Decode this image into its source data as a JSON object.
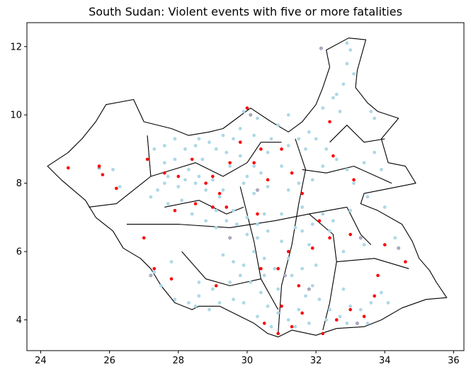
{
  "chart_data": {
    "type": "scatter",
    "title": "South Sudan: Violent events with five or more fatalities",
    "xlim": [
      23.6,
      36.3
    ],
    "ylim": [
      3.1,
      12.7
    ],
    "x_ticks": [
      24,
      26,
      28,
      30,
      32,
      34,
      36
    ],
    "y_ticks": [
      4,
      6,
      8,
      10,
      12
    ],
    "colors": {
      "minor": "#add8e6",
      "major": "#ff0000",
      "other": "#b0b0c8"
    },
    "outline": [
      [
        32.95,
        12.25
      ],
      [
        33.45,
        12.2
      ],
      [
        33.2,
        11.3
      ],
      [
        33.15,
        10.8
      ],
      [
        33.5,
        10.35
      ],
      [
        33.8,
        10.1
      ],
      [
        34.4,
        9.9
      ],
      [
        34.15,
        9.6
      ],
      [
        33.9,
        9.3
      ],
      [
        34.1,
        8.6
      ],
      [
        34.6,
        8.5
      ],
      [
        34.9,
        8.0
      ],
      [
        33.9,
        7.8
      ],
      [
        33.4,
        7.7
      ],
      [
        33.3,
        7.4
      ],
      [
        33.8,
        7.2
      ],
      [
        34.5,
        6.8
      ],
      [
        34.8,
        6.3
      ],
      [
        35.0,
        5.8
      ],
      [
        35.3,
        5.45
      ],
      [
        35.5,
        5.1
      ],
      [
        35.8,
        4.65
      ],
      [
        35.2,
        4.6
      ],
      [
        34.5,
        4.35
      ],
      [
        33.9,
        4.0
      ],
      [
        33.4,
        3.8
      ],
      [
        32.6,
        3.75
      ],
      [
        32.0,
        3.55
      ],
      [
        31.3,
        3.7
      ],
      [
        30.9,
        3.5
      ],
      [
        30.6,
        3.6
      ],
      [
        30.2,
        3.9
      ],
      [
        29.6,
        4.2
      ],
      [
        29.2,
        4.4
      ],
      [
        28.6,
        4.4
      ],
      [
        28.4,
        4.3
      ],
      [
        27.9,
        4.5
      ],
      [
        27.5,
        5.0
      ],
      [
        27.2,
        5.5
      ],
      [
        26.9,
        5.8
      ],
      [
        26.4,
        6.1
      ],
      [
        26.1,
        6.6
      ],
      [
        25.6,
        7.0
      ],
      [
        25.3,
        7.5
      ],
      [
        24.6,
        8.1
      ],
      [
        24.2,
        8.5
      ],
      [
        24.8,
        8.9
      ],
      [
        25.2,
        9.3
      ],
      [
        25.6,
        9.8
      ],
      [
        25.9,
        10.3
      ],
      [
        26.7,
        10.45
      ],
      [
        27.0,
        9.8
      ],
      [
        27.8,
        9.6
      ],
      [
        28.3,
        9.4
      ],
      [
        28.9,
        9.5
      ],
      [
        29.3,
        9.6
      ],
      [
        29.7,
        9.9
      ],
      [
        30.1,
        10.2
      ],
      [
        30.7,
        9.8
      ],
      [
        31.2,
        9.5
      ],
      [
        31.6,
        9.8
      ],
      [
        32.0,
        10.3
      ],
      [
        32.2,
        10.8
      ],
      [
        32.4,
        11.4
      ],
      [
        32.3,
        11.9
      ],
      [
        32.95,
        12.25
      ]
    ],
    "admin_boundaries": [
      [
        [
          27.1,
          9.4
        ],
        [
          27.2,
          8.2
        ],
        [
          26.2,
          7.4
        ],
        [
          25.4,
          7.3
        ]
      ],
      [
        [
          27.2,
          8.2
        ],
        [
          28.5,
          8.6
        ],
        [
          29.3,
          8.2
        ],
        [
          30.0,
          8.6
        ],
        [
          30.4,
          9.2
        ],
        [
          31.0,
          9.2
        ]
      ],
      [
        [
          26.5,
          6.8
        ],
        [
          28.0,
          6.8
        ],
        [
          29.5,
          6.7
        ],
        [
          30.8,
          6.9
        ],
        [
          31.8,
          7.1
        ],
        [
          32.9,
          7.3
        ]
      ],
      [
        [
          29.8,
          7.9
        ],
        [
          30.2,
          6.3
        ],
        [
          30.4,
          5.2
        ],
        [
          30.9,
          4.3
        ]
      ],
      [
        [
          31.4,
          9.3
        ],
        [
          31.7,
          8.4
        ],
        [
          31.5,
          7.4
        ],
        [
          31.3,
          6.2
        ],
        [
          31.0,
          5.0
        ],
        [
          30.9,
          3.6
        ]
      ],
      [
        [
          31.8,
          7.1
        ],
        [
          32.5,
          6.5
        ],
        [
          32.6,
          5.7
        ],
        [
          32.4,
          4.5
        ],
        [
          32.2,
          3.7
        ]
      ],
      [
        [
          31.6,
          8.4
        ],
        [
          32.3,
          8.3
        ],
        [
          33.1,
          8.5
        ],
        [
          34.2,
          8.0
        ]
      ],
      [
        [
          32.4,
          9.2
        ],
        [
          32.9,
          9.7
        ],
        [
          33.4,
          9.2
        ],
        [
          34.0,
          9.3
        ]
      ],
      [
        [
          32.6,
          5.7
        ],
        [
          33.7,
          5.8
        ],
        [
          34.7,
          5.5
        ]
      ],
      [
        [
          28.1,
          6.0
        ],
        [
          28.8,
          5.2
        ],
        [
          29.5,
          5.0
        ],
        [
          30.4,
          5.2
        ]
      ],
      [
        [
          27.6,
          7.3
        ],
        [
          28.6,
          7.5
        ],
        [
          29.4,
          7.1
        ],
        [
          29.9,
          7.3
        ]
      ],
      [
        [
          32.9,
          7.3
        ],
        [
          33.3,
          6.5
        ],
        [
          33.6,
          6.2
        ]
      ]
    ],
    "events_minor": [
      [
        32.9,
        12.1
      ],
      [
        33.0,
        11.9
      ],
      [
        32.9,
        11.5
      ],
      [
        33.1,
        11.2
      ],
      [
        32.8,
        10.9
      ],
      [
        32.6,
        10.6
      ],
      [
        32.5,
        10.5
      ],
      [
        32.2,
        10.2
      ],
      [
        32.7,
        10.1
      ],
      [
        33.6,
        10.1
      ],
      [
        33.7,
        9.9
      ],
      [
        31.8,
        9.5
      ],
      [
        31.5,
        9.3
      ],
      [
        31.2,
        9.1
      ],
      [
        30.7,
        9.3
      ],
      [
        30.2,
        9.4
      ],
      [
        29.8,
        9.6
      ],
      [
        29.6,
        9.3
      ],
      [
        29.3,
        9.4
      ],
      [
        28.9,
        9.2
      ],
      [
        28.5,
        9.1
      ],
      [
        28.2,
        9.0
      ],
      [
        27.9,
        9.3
      ],
      [
        27.6,
        9.1
      ],
      [
        27.3,
        9.0
      ],
      [
        26.1,
        8.4
      ],
      [
        26.3,
        7.9
      ],
      [
        27.6,
        8.6
      ],
      [
        27.7,
        8.2
      ],
      [
        28.0,
        7.9
      ],
      [
        28.3,
        8.4
      ],
      [
        28.6,
        8.2
      ],
      [
        28.8,
        7.8
      ],
      [
        29.0,
        8.1
      ],
      [
        29.3,
        7.8
      ],
      [
        29.5,
        8.5
      ],
      [
        29.8,
        8.8
      ],
      [
        30.0,
        8.2
      ],
      [
        30.2,
        7.7
      ],
      [
        30.4,
        8.3
      ],
      [
        30.6,
        7.9
      ],
      [
        31.0,
        8.5
      ],
      [
        31.2,
        7.8
      ],
      [
        31.5,
        8.0
      ],
      [
        31.9,
        8.1
      ],
      [
        32.2,
        8.5
      ],
      [
        32.6,
        8.7
      ],
      [
        32.9,
        8.4
      ],
      [
        33.1,
        8.0
      ],
      [
        33.4,
        8.6
      ],
      [
        33.7,
        8.9
      ],
      [
        33.9,
        8.4
      ],
      [
        34.0,
        7.3
      ],
      [
        34.3,
        6.4
      ],
      [
        33.4,
        6.2
      ],
      [
        32.8,
        6.0
      ],
      [
        32.4,
        6.6
      ],
      [
        32.2,
        7.1
      ],
      [
        31.6,
        7.3
      ],
      [
        31.4,
        6.7
      ],
      [
        31.0,
        6.3
      ],
      [
        30.6,
        6.6
      ],
      [
        30.3,
        6.4
      ],
      [
        30.0,
        6.5
      ],
      [
        29.7,
        6.8
      ],
      [
        29.4,
        6.9
      ],
      [
        29.1,
        7.2
      ],
      [
        28.8,
        6.9
      ],
      [
        28.4,
        7.1
      ],
      [
        28.1,
        7.5
      ],
      [
        27.7,
        7.4
      ],
      [
        27.4,
        7.8
      ],
      [
        27.2,
        7.6
      ],
      [
        27.3,
        5.4
      ],
      [
        27.5,
        5.0
      ],
      [
        27.9,
        4.6
      ],
      [
        28.3,
        4.5
      ],
      [
        28.6,
        4.7
      ],
      [
        29.0,
        4.9
      ],
      [
        29.5,
        5.1
      ],
      [
        29.8,
        5.3
      ],
      [
        30.1,
        5.1
      ],
      [
        30.4,
        4.8
      ],
      [
        30.6,
        4.4
      ],
      [
        30.9,
        4.2
      ],
      [
        31.2,
        4.0
      ],
      [
        31.5,
        4.3
      ],
      [
        31.7,
        4.7
      ],
      [
        31.9,
        5.0
      ],
      [
        32.1,
        4.6
      ],
      [
        32.4,
        4.3
      ],
      [
        32.7,
        4.1
      ],
      [
        33.0,
        4.4
      ],
      [
        33.3,
        4.3
      ],
      [
        33.6,
        4.5
      ],
      [
        33.9,
        4.8
      ],
      [
        34.1,
        4.5
      ],
      [
        32.8,
        4.9
      ],
      [
        31.6,
        5.5
      ],
      [
        31.2,
        5.8
      ],
      [
        30.8,
        5.5
      ],
      [
        30.5,
        5.8
      ],
      [
        30.2,
        6.0
      ],
      [
        29.9,
        5.6
      ],
      [
        29.6,
        5.7
      ],
      [
        29.3,
        5.9
      ],
      [
        32.3,
        4.0
      ],
      [
        31.8,
        3.9
      ],
      [
        30.7,
        3.8
      ],
      [
        30.3,
        4.1
      ],
      [
        29.9,
        4.5
      ],
      [
        29.2,
        4.5
      ],
      [
        28.9,
        4.3
      ],
      [
        28.5,
        4.4
      ],
      [
        31.4,
        3.8
      ],
      [
        32.9,
        3.9
      ],
      [
        33.5,
        3.9
      ],
      [
        30.9,
        9.7
      ],
      [
        31.2,
        10.0
      ],
      [
        29.9,
        10.1
      ],
      [
        30.3,
        9.9
      ],
      [
        30.6,
        8.9
      ],
      [
        29.4,
        8.9
      ],
      [
        29.1,
        9.0
      ],
      [
        28.7,
        8.7
      ],
      [
        28.5,
        8.0
      ],
      [
        29.2,
        7.6
      ],
      [
        29.6,
        7.2
      ],
      [
        30.0,
        7.0
      ],
      [
        30.5,
        7.1
      ],
      [
        31.0,
        7.1
      ],
      [
        31.6,
        6.6
      ],
      [
        31.9,
        6.8
      ],
      [
        32.5,
        6.9
      ],
      [
        33.0,
        7.2
      ],
      [
        33.5,
        7.6
      ],
      [
        32.3,
        9.0
      ],
      [
        32.0,
        9.3
      ],
      [
        31.7,
        9.0
      ],
      [
        30.2,
        8.5
      ],
      [
        29.9,
        8.0
      ],
      [
        28.6,
        9.3
      ],
      [
        27.9,
        8.7
      ],
      [
        27.6,
        8.0
      ],
      [
        28.2,
        8.1
      ],
      [
        29.1,
        6.7
      ],
      [
        30.3,
        6.8
      ],
      [
        31.8,
        6.2
      ],
      [
        32.0,
        5.6
      ],
      [
        31.3,
        5.3
      ],
      [
        30.9,
        4.9
      ],
      [
        30.5,
        5.3
      ],
      [
        29.6,
        4.6
      ],
      [
        28.6,
        5.1
      ],
      [
        27.8,
        5.7
      ]
    ],
    "events_major": [
      [
        24.8,
        8.45
      ],
      [
        25.7,
        8.5
      ],
      [
        25.8,
        8.25
      ],
      [
        26.2,
        7.85
      ],
      [
        27.1,
        8.7
      ],
      [
        27.6,
        8.3
      ],
      [
        28.0,
        8.2
      ],
      [
        28.4,
        8.7
      ],
      [
        28.8,
        8.0
      ],
      [
        29.0,
        8.2
      ],
      [
        29.2,
        7.7
      ],
      [
        29.5,
        8.6
      ],
      [
        29.8,
        9.2
      ],
      [
        30.0,
        10.2
      ],
      [
        30.4,
        9.0
      ],
      [
        30.2,
        8.6
      ],
      [
        30.6,
        8.1
      ],
      [
        31.0,
        9.0
      ],
      [
        31.3,
        8.3
      ],
      [
        31.6,
        7.7
      ],
      [
        32.5,
        8.8
      ],
      [
        32.4,
        9.8
      ],
      [
        33.1,
        8.1
      ],
      [
        33.0,
        6.5
      ],
      [
        32.4,
        6.4
      ],
      [
        32.1,
        6.9
      ],
      [
        30.3,
        7.1
      ],
      [
        29.4,
        7.3
      ],
      [
        29.0,
        7.3
      ],
      [
        28.5,
        7.4
      ],
      [
        27.9,
        7.2
      ],
      [
        27.0,
        6.4
      ],
      [
        27.3,
        5.5
      ],
      [
        27.8,
        5.2
      ],
      [
        29.1,
        5.0
      ],
      [
        30.4,
        5.5
      ],
      [
        30.9,
        5.5
      ],
      [
        31.2,
        6.0
      ],
      [
        31.9,
        6.1
      ],
      [
        31.5,
        5.0
      ],
      [
        31.0,
        4.4
      ],
      [
        30.5,
        3.9
      ],
      [
        30.9,
        3.6
      ],
      [
        31.3,
        3.8
      ],
      [
        31.6,
        4.2
      ],
      [
        32.2,
        3.6
      ],
      [
        32.6,
        4.0
      ],
      [
        33.0,
        4.3
      ],
      [
        33.4,
        4.1
      ],
      [
        33.7,
        4.7
      ],
      [
        33.8,
        5.3
      ],
      [
        34.0,
        6.2
      ],
      [
        34.6,
        5.7
      ]
    ],
    "events_other": [
      [
        32.15,
        11.95
      ],
      [
        30.1,
        10.0
      ],
      [
        30.3,
        7.8
      ],
      [
        29.5,
        6.4
      ],
      [
        31.1,
        5.3
      ],
      [
        31.8,
        4.9
      ],
      [
        33.3,
        6.4
      ],
      [
        34.4,
        6.1
      ],
      [
        33.2,
        3.9
      ],
      [
        25.7,
        8.45
      ],
      [
        27.2,
        5.3
      ]
    ]
  }
}
